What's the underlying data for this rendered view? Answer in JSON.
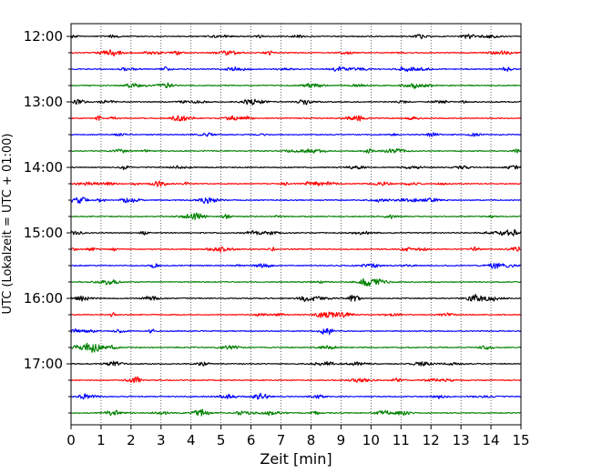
{
  "chart_data": {
    "type": "line",
    "title": "",
    "xlabel": "Zeit  [min]",
    "ylabel": "UTC (Lokalzeit = UTC + 01:00)",
    "x_range": [
      0,
      15
    ],
    "x_ticks": [
      "0",
      "1",
      "2",
      "3",
      "4",
      "5",
      "6",
      "7",
      "8",
      "9",
      "10",
      "11",
      "12",
      "13",
      "14",
      "15"
    ],
    "y_tick_labels": [
      "12:00",
      "13:00",
      "14:00",
      "15:00",
      "16:00",
      "17:00"
    ],
    "trace_interval_min": 15,
    "trace_start_times": [
      "12:00",
      "12:15",
      "12:30",
      "12:45",
      "13:00",
      "13:15",
      "13:30",
      "13:45",
      "14:00",
      "14:15",
      "14:30",
      "14:45",
      "15:00",
      "15:15",
      "15:30",
      "15:45",
      "16:00",
      "16:15",
      "16:30",
      "16:45",
      "17:00",
      "17:15",
      "17:30",
      "17:45"
    ],
    "trace_colors": [
      "#000000",
      "#ff0000",
      "#0000ff",
      "#008000"
    ],
    "grid": "vertical dotted at each minute",
    "legend": "none"
  }
}
